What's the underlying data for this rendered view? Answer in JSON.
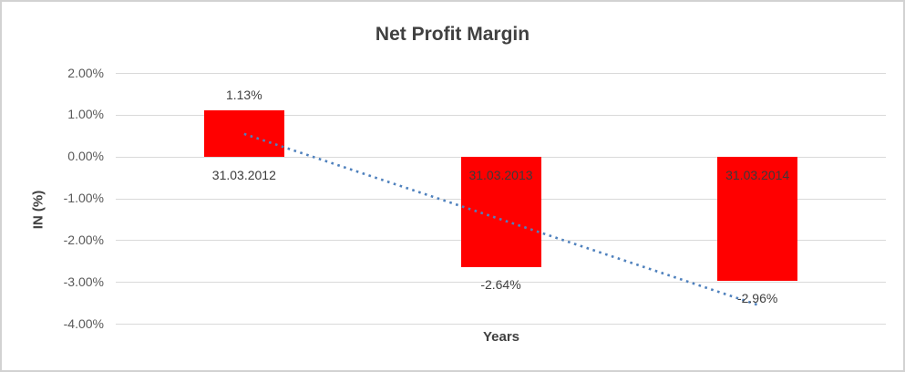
{
  "chart": {
    "title": "Net Profit Margin",
    "y_axis_title": "IN (%)",
    "x_axis_title": "Years"
  },
  "chart_data": {
    "type": "bar",
    "title": "Net Profit Margin",
    "xlabel": "Years",
    "ylabel": "IN (%)",
    "categories": [
      "31.03.2012",
      "31.03.2013",
      "31.03.2014"
    ],
    "values": [
      1.13,
      -2.64,
      -2.96
    ],
    "data_labels": [
      "1.13%",
      "-2.64%",
      "-2.96%"
    ],
    "y_ticks": [
      {
        "value": 2,
        "label": "2.00%"
      },
      {
        "value": 1,
        "label": "1.00%"
      },
      {
        "value": 0,
        "label": "0.00%"
      },
      {
        "value": -1,
        "label": "-1.00%"
      },
      {
        "value": -2,
        "label": "-2.00%"
      },
      {
        "value": -3,
        "label": "-3.00%"
      },
      {
        "value": -4,
        "label": "-4.00%"
      }
    ],
    "ylim": [
      -4,
      2
    ],
    "grid": true,
    "legend": false,
    "trendline": {
      "kind": "linear",
      "style": "dotted"
    },
    "colors": {
      "bar": "#ff0000",
      "trendline": "#4f81bd",
      "gridline": "#d9d9d9",
      "tick_text": "#595959",
      "label_text": "#404040",
      "title_text": "#404040",
      "border": "#d2d2d2"
    }
  }
}
